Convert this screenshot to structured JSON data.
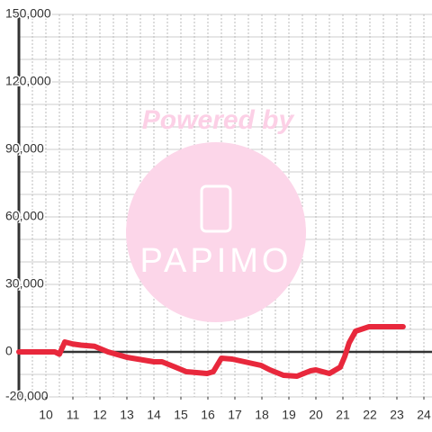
{
  "chart_data": {
    "type": "line",
    "annotations": [
      "Powered by",
      "PAPIMO"
    ],
    "xlim": [
      9,
      24.3
    ],
    "xticks": [
      10,
      11,
      12,
      13,
      14,
      15,
      16,
      17,
      18,
      19,
      20,
      21,
      22,
      23,
      24
    ],
    "ylim": [
      -20000,
      150000
    ],
    "yticks": [
      {
        "value": -20000,
        "label": "-20,000"
      },
      0,
      {
        "value": 30000,
        "label": "30,000"
      },
      {
        "value": 60000,
        "label": "60,000"
      },
      {
        "value": 90000,
        "label": "90,000"
      },
      {
        "value": 120000,
        "label": "120,000"
      },
      {
        "value": 150000,
        "label": "150,000"
      }
    ],
    "x_grid_step": 0.5,
    "y_grid_step": 10000,
    "grid": true,
    "series": [
      {
        "color": "#e8283c",
        "x": [
          9.0,
          10.33,
          10.5,
          10.7,
          11.0,
          11.3,
          11.8,
          12.3,
          13.0,
          13.6,
          14.0,
          14.3,
          14.8,
          15.2,
          15.97,
          16.2,
          16.5,
          16.9,
          17.97,
          18.3,
          18.8,
          19.3,
          19.8,
          20.0,
          20.5,
          20.9,
          21.07,
          21.23,
          21.47,
          21.97,
          23.23
        ],
        "values": [
          0,
          0,
          -1000,
          4400,
          3500,
          3000,
          2500,
          0,
          -2400,
          -3600,
          -4400,
          -4400,
          -6800,
          -8800,
          -9600,
          -8800,
          -2800,
          -3200,
          -6000,
          -8000,
          -10400,
          -10800,
          -8400,
          -8000,
          -9600,
          -6800,
          -2000,
          4000,
          9200,
          11200,
          11200
        ]
      }
    ]
  }
}
